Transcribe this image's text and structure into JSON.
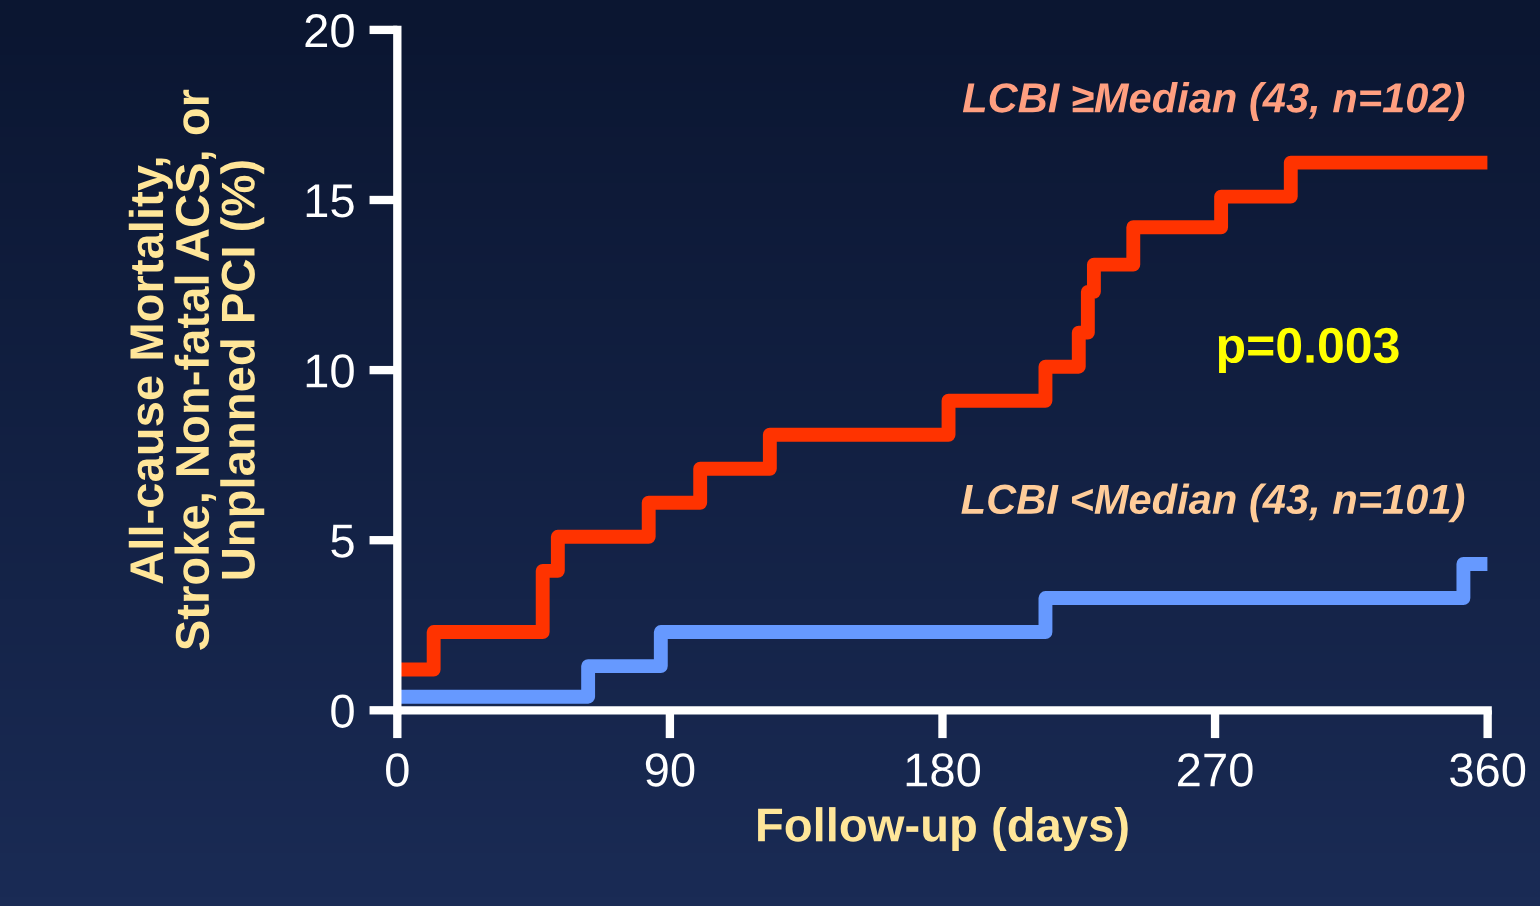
{
  "chart_data": {
    "type": "step",
    "xlabel": "Follow-up (days)",
    "ylabel": "All-cause Mortality,\nStroke, Non-fatal ACS, or\nUnplanned PCI (%)",
    "series": [
      {
        "name": "LCBI ≥Median (43, n=102)",
        "color": "#ff3300",
        "x": [
          0,
          12,
          48,
          53,
          83,
          100,
          123,
          182,
          214,
          225,
          228,
          230,
          243,
          272,
          295,
          360
        ],
        "values": [
          1.2,
          2.3,
          4.1,
          5.1,
          6.1,
          7.1,
          8.1,
          9.1,
          10.1,
          11.1,
          12.3,
          13.1,
          14.2,
          15.1,
          16.1,
          16.1
        ]
      },
      {
        "name": "LCBI <Median (43, n=101)",
        "color": "#6699ff",
        "x": [
          0,
          63,
          87,
          214,
          352,
          360
        ],
        "values": [
          0.4,
          1.3,
          2.3,
          3.3,
          4.3,
          4.3
        ]
      }
    ],
    "annotations": [
      "p=0.003"
    ],
    "xlim": [
      0,
      360
    ],
    "xticks": [
      0,
      90,
      180,
      270,
      360
    ],
    "ylim": [
      0,
      20
    ],
    "yticks": [
      0,
      5,
      10,
      15,
      20
    ],
    "grid": false,
    "legend": false,
    "line_style": "solid",
    "marker": "none"
  }
}
